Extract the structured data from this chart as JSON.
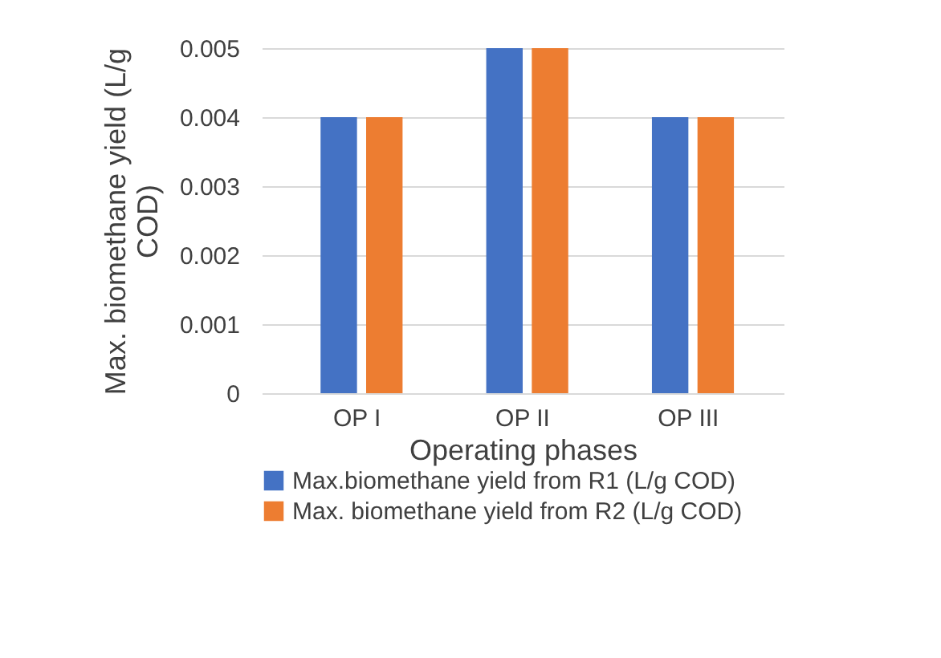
{
  "chart_data": {
    "type": "bar",
    "xlabel": "Operating phases",
    "ylabel": "Max. biomethane yield (L/g COD)",
    "categories": [
      "OP I",
      "OP II",
      "OP III"
    ],
    "series": [
      {
        "name": "Max.biomethane yield from R1 (L/g COD)",
        "color": "#4472c4",
        "values": [
          0.004,
          0.005,
          0.004
        ]
      },
      {
        "name": "Max. biomethane yield from R2 (L/g COD)",
        "color": "#ed7d31",
        "values": [
          0.004,
          0.005,
          0.004
        ]
      }
    ],
    "ylim": [
      0,
      0.005
    ],
    "yticks": [
      0,
      0.001,
      0.002,
      0.003,
      0.004,
      0.005
    ],
    "grid": "y",
    "legend": "bottom"
  }
}
